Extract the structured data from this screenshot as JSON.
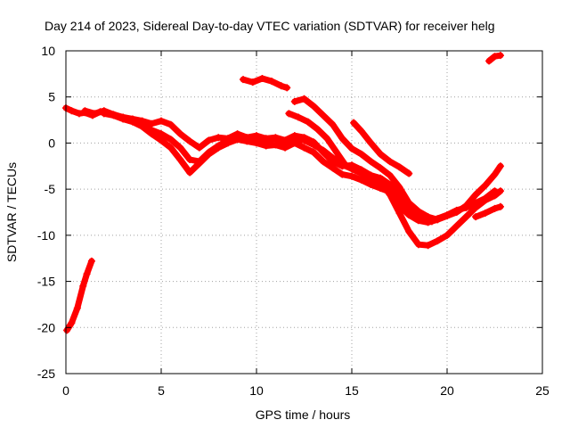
{
  "chart_data": {
    "type": "scatter",
    "title": "Day 214 of 2023, Sidereal Day-to-day VTEC variation (SDTVAR) for receiver helg",
    "xlabel": "GPS time / hours",
    "ylabel": "SDTVAR / TECUs",
    "xlim": [
      0,
      25
    ],
    "ylim": [
      -25,
      10
    ],
    "xticks": [
      0,
      5,
      10,
      15,
      20,
      25
    ],
    "xtick_labels": [
      "0",
      "5",
      "10",
      "15",
      "20",
      "25"
    ],
    "yticks": [
      -25,
      -20,
      -15,
      -10,
      -5,
      0,
      5,
      10
    ],
    "ytick_labels": [
      "-25",
      "-20",
      "-15",
      "-10",
      "-5",
      "0",
      "5",
      "10"
    ],
    "grid": true,
    "marker_color": "#ff0000",
    "series": [
      {
        "name": "trace-1",
        "x": [
          0.0,
          0.3,
          0.7,
          1.0,
          1.4,
          1.8,
          2.2,
          2.6,
          3.0,
          3.5,
          4.0,
          4.5,
          5.0,
          5.5,
          6.0,
          6.5,
          7.0,
          7.5,
          8.0,
          8.5,
          9.0,
          9.5,
          10.0,
          10.5,
          11.0,
          11.5,
          12.0,
          12.5,
          13.0,
          13.5,
          14.0,
          14.5,
          15.0,
          15.5,
          16.0,
          16.5,
          17.0,
          17.5,
          18.0,
          18.5,
          19.0,
          19.5,
          20.0,
          20.5,
          21.0,
          21.5,
          22.0,
          22.5
        ],
        "y": [
          3.8,
          3.5,
          3.2,
          3.3,
          3.0,
          3.4,
          3.2,
          3.0,
          2.7,
          2.4,
          2.0,
          1.4,
          1.0,
          0.4,
          -0.5,
          -1.8,
          -2.0,
          -1.0,
          -0.3,
          0.3,
          0.7,
          0.5,
          0.4,
          0.2,
          0.5,
          0.0,
          0.4,
          0.3,
          -0.2,
          -0.8,
          -1.6,
          -2.3,
          -2.6,
          -3.2,
          -3.5,
          -3.8,
          -4.5,
          -5.6,
          -6.8,
          -7.8,
          -8.3,
          -8.2,
          -7.8,
          -7.3,
          -7.0,
          -6.5,
          -6.0,
          -5.2
        ]
      },
      {
        "name": "trace-2",
        "x": [
          2.0,
          2.5,
          3.0,
          3.5,
          4.0,
          4.5,
          5.0,
          5.5,
          6.0,
          6.5,
          7.0,
          7.5,
          8.0,
          8.5,
          9.0,
          9.5,
          10.0,
          10.5,
          11.0,
          11.5,
          12.0,
          12.5,
          13.0,
          13.5,
          14.0,
          14.5,
          15.0,
          15.5,
          16.0,
          16.5,
          17.0,
          17.5,
          18.0,
          18.5,
          19.0,
          19.5,
          20.0,
          20.5,
          21.0,
          21.5,
          22.0,
          22.5,
          22.8
        ],
        "y": [
          3.2,
          3.0,
          2.6,
          2.3,
          1.8,
          1.0,
          0.3,
          -0.5,
          -1.8,
          -3.2,
          -2.2,
          -1.2,
          -0.5,
          0.0,
          0.4,
          0.2,
          0.0,
          -0.3,
          -0.2,
          -0.5,
          0.0,
          -0.5,
          -1.0,
          -2.0,
          -2.7,
          -3.4,
          -3.6,
          -4.0,
          -4.5,
          -4.9,
          -5.3,
          -6.8,
          -7.8,
          -8.4,
          -8.6,
          -8.3,
          -7.9,
          -7.5,
          -6.8,
          -5.6,
          -4.6,
          -3.4,
          -2.5
        ]
      },
      {
        "name": "trace-3",
        "x": [
          1.0,
          1.5,
          2.0,
          2.5,
          3.0,
          3.5,
          4.0,
          4.5,
          5.0,
          5.5,
          6.0,
          6.5,
          7.0,
          7.5,
          8.0,
          8.5,
          9.0,
          9.5,
          10.0,
          10.5,
          11.0,
          11.5,
          12.0,
          12.5,
          13.0,
          13.5,
          14.0,
          14.5,
          15.0,
          15.5,
          16.0,
          16.5,
          17.0,
          17.5,
          18.0,
          18.5,
          19.0,
          19.5,
          20.0,
          20.5,
          21.0,
          21.5,
          22.0,
          22.5,
          22.8
        ],
        "y": [
          3.5,
          3.2,
          3.5,
          3.1,
          2.8,
          2.6,
          2.4,
          2.1,
          2.4,
          2.0,
          1.0,
          0.2,
          -0.5,
          0.3,
          0.6,
          0.5,
          1.0,
          0.6,
          0.8,
          0.5,
          0.6,
          0.3,
          0.8,
          0.6,
          0.1,
          -1.0,
          -2.0,
          -2.5,
          -2.4,
          -2.9,
          -3.5,
          -4.2,
          -5.6,
          -7.6,
          -9.6,
          -11.0,
          -11.1,
          -10.6,
          -10.0,
          -9.0,
          -8.0,
          -7.0,
          -6.2,
          -5.7,
          -5.2
        ]
      },
      {
        "name": "trace-4",
        "x": [
          12.0,
          12.5,
          13.0,
          13.5,
          14.0,
          14.5,
          15.0,
          15.5,
          16.0,
          16.5,
          17.0,
          17.5,
          18.0,
          18.5,
          19.0,
          19.5
        ],
        "y": [
          4.5,
          4.8,
          4.0,
          3.0,
          2.0,
          0.5,
          -0.6,
          -1.2,
          -2.0,
          -2.7,
          -3.5,
          -4.8,
          -6.5,
          -7.4,
          -8.0,
          -8.3
        ]
      },
      {
        "name": "trace-5",
        "x": [
          11.7,
          12.2,
          12.7,
          13.2,
          13.7,
          14.2,
          14.7,
          15.2,
          15.7,
          16.2,
          16.7,
          17.2,
          17.7,
          18.2,
          18.7,
          19.2
        ],
        "y": [
          3.2,
          2.8,
          2.3,
          1.5,
          0.5,
          -1.0,
          -2.5,
          -3.0,
          -3.5,
          -4.2,
          -4.8,
          -5.6,
          -6.8,
          -7.6,
          -8.1,
          -8.5
        ]
      },
      {
        "name": "trace-6",
        "x": [
          15.1,
          15.5,
          16.0,
          16.5,
          17.0,
          17.5,
          18.0
        ],
        "y": [
          2.2,
          1.3,
          0.0,
          -1.2,
          -2.0,
          -2.6,
          -3.3
        ]
      },
      {
        "name": "trace-7",
        "x": [
          9.3,
          9.8,
          10.3,
          10.8,
          11.3,
          11.6
        ],
        "y": [
          6.9,
          6.6,
          7.0,
          6.7,
          6.2,
          6.0
        ]
      },
      {
        "name": "trace-8",
        "x": [
          0.05,
          0.3,
          0.6,
          0.9,
          1.1,
          1.35
        ],
        "y": [
          -20.3,
          -19.5,
          -17.9,
          -15.5,
          -14.2,
          -12.8
        ]
      },
      {
        "name": "trace-9",
        "x": [
          22.2,
          22.5,
          22.8
        ],
        "y": [
          8.9,
          9.4,
          9.5
        ]
      },
      {
        "name": "trace-10",
        "x": [
          21.5,
          22.0,
          22.5,
          22.8
        ],
        "y": [
          -8.0,
          -7.6,
          -7.1,
          -6.9
        ]
      }
    ]
  }
}
